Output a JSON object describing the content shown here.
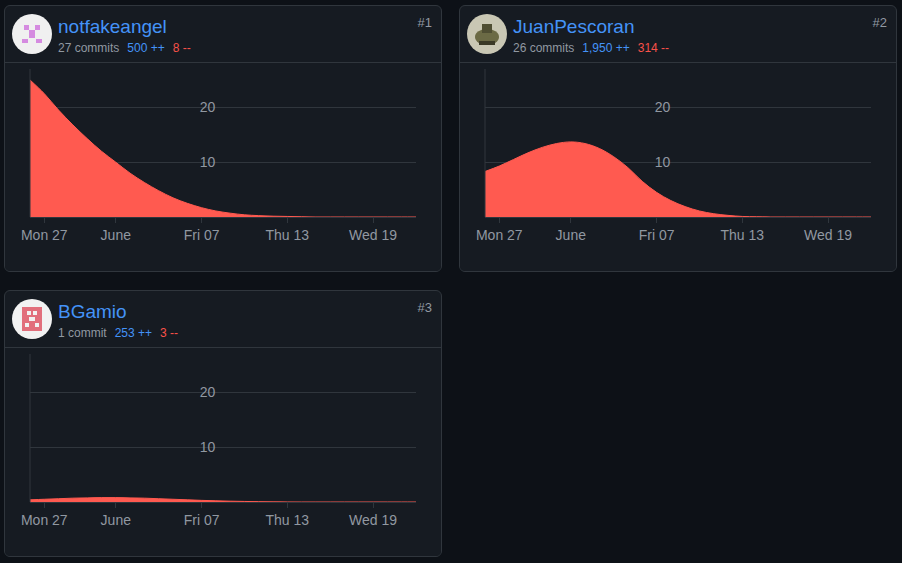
{
  "chart_data": [
    {
      "type": "area",
      "title": "notfakeangel",
      "rank": "#1",
      "commits": "27 commits",
      "additions": "500 ++",
      "deletions": "8 --",
      "categories": [
        null,
        "Mon 27",
        null,
        null,
        null,
        null,
        "June",
        null,
        null,
        null,
        null,
        null,
        "Fri 07",
        null,
        null,
        null,
        null,
        null,
        "Thu 13",
        null,
        null,
        null,
        null,
        null,
        "Wed 19",
        null,
        null,
        null
      ],
      "values": [
        25,
        22.5,
        19.5,
        16.8,
        14.3,
        12,
        10,
        8,
        6.3,
        4.8,
        3.5,
        2.5,
        1.7,
        1.1,
        0.7,
        0.4,
        0.25,
        0.15,
        0.1,
        0.05,
        0,
        0,
        0,
        0,
        0,
        0,
        0,
        0
      ],
      "color": "#ff5a50",
      "ylim": [
        0,
        27
      ],
      "yticks": [
        10,
        20
      ],
      "grid": true
    },
    {
      "type": "area",
      "title": "JuanPescoran",
      "rank": "#2",
      "commits": "26 commits",
      "additions": "1,950 ++",
      "deletions": "314 --",
      "categories": [
        null,
        "Mon 27",
        null,
        null,
        null,
        null,
        "June",
        null,
        null,
        null,
        null,
        null,
        "Fri 07",
        null,
        null,
        null,
        null,
        null,
        "Thu 13",
        null,
        null,
        null,
        null,
        null,
        "Wed 19",
        null,
        null,
        null
      ],
      "values": [
        8.3,
        9.3,
        10.5,
        11.7,
        12.7,
        13.4,
        13.7,
        13.4,
        12.5,
        11,
        9,
        6.5,
        4.5,
        3,
        1.9,
        1.1,
        0.6,
        0.3,
        0.1,
        0.05,
        0,
        0,
        0,
        0,
        0,
        0,
        0,
        0
      ],
      "color": "#ff5a50",
      "ylim": [
        0,
        27
      ],
      "yticks": [
        10,
        20
      ],
      "grid": true
    },
    {
      "type": "area",
      "title": "BGamio",
      "rank": "#3",
      "commits": "1 commit",
      "additions": "253 ++",
      "deletions": "3 --",
      "categories": [
        null,
        "Mon 27",
        null,
        null,
        null,
        null,
        "June",
        null,
        null,
        null,
        null,
        null,
        "Fri 07",
        null,
        null,
        null,
        null,
        null,
        "Thu 13",
        null,
        null,
        null,
        null,
        null,
        "Wed 19",
        null,
        null,
        null
      ],
      "values": [
        0.4,
        0.5,
        0.6,
        0.7,
        0.75,
        0.8,
        0.8,
        0.75,
        0.7,
        0.6,
        0.5,
        0.4,
        0.3,
        0.22,
        0.15,
        0.1,
        0.06,
        0.03,
        0.01,
        0,
        0,
        0,
        0,
        0,
        0,
        0,
        0,
        0
      ],
      "color": "#ff5a50",
      "ylim": [
        0,
        27
      ],
      "yticks": [
        10,
        20
      ],
      "grid": true
    }
  ]
}
